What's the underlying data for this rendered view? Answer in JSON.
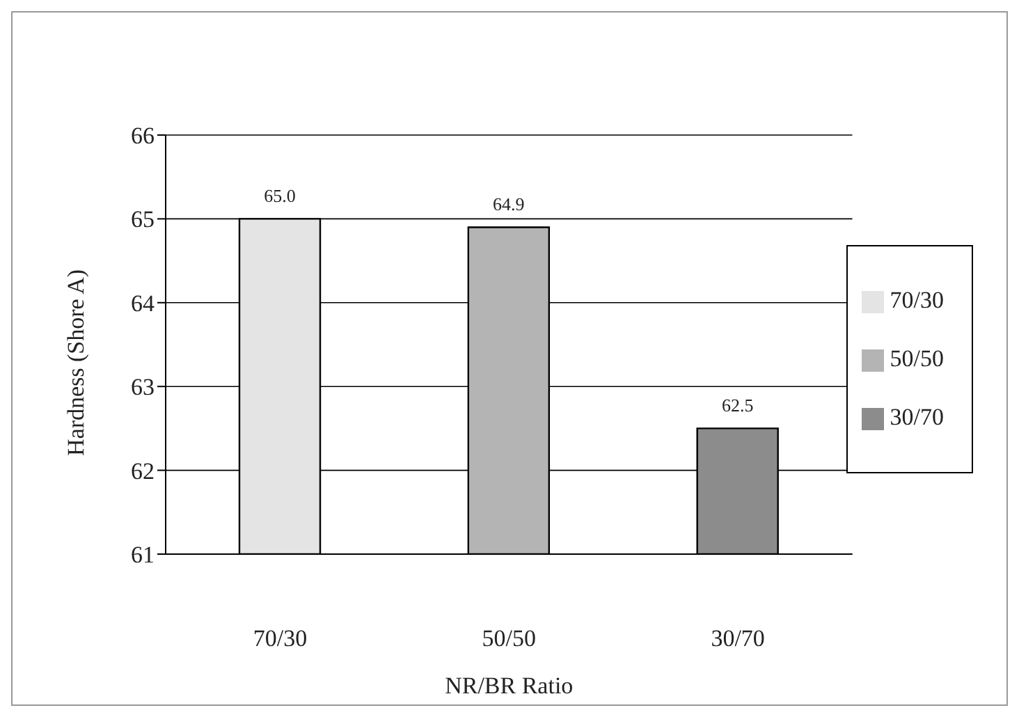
{
  "chart_data": {
    "type": "bar",
    "xlabel": "NR/BR Ratio",
    "ylabel": "Hardness (Shore A)",
    "categories": [
      "70/30",
      "50/50",
      "30/70"
    ],
    "stacked": true,
    "series": [
      {
        "name": "70/30",
        "color": "#e4e4e4",
        "values": [
          65.0,
          null,
          null
        ],
        "value_labels": [
          "65.0",
          null,
          null
        ]
      },
      {
        "name": "50/50",
        "color": "#b4b4b4",
        "values": [
          null,
          64.9,
          null
        ],
        "value_labels": [
          null,
          "64.9",
          null
        ]
      },
      {
        "name": "30/70",
        "color": "#8c8c8c",
        "values": [
          null,
          null,
          62.5
        ],
        "value_labels": [
          null,
          null,
          "62.5"
        ]
      }
    ],
    "ylim": [
      61,
      66
    ],
    "yticks": [
      61,
      62,
      63,
      64,
      65,
      66
    ],
    "grid": "y",
    "legend": "right"
  }
}
